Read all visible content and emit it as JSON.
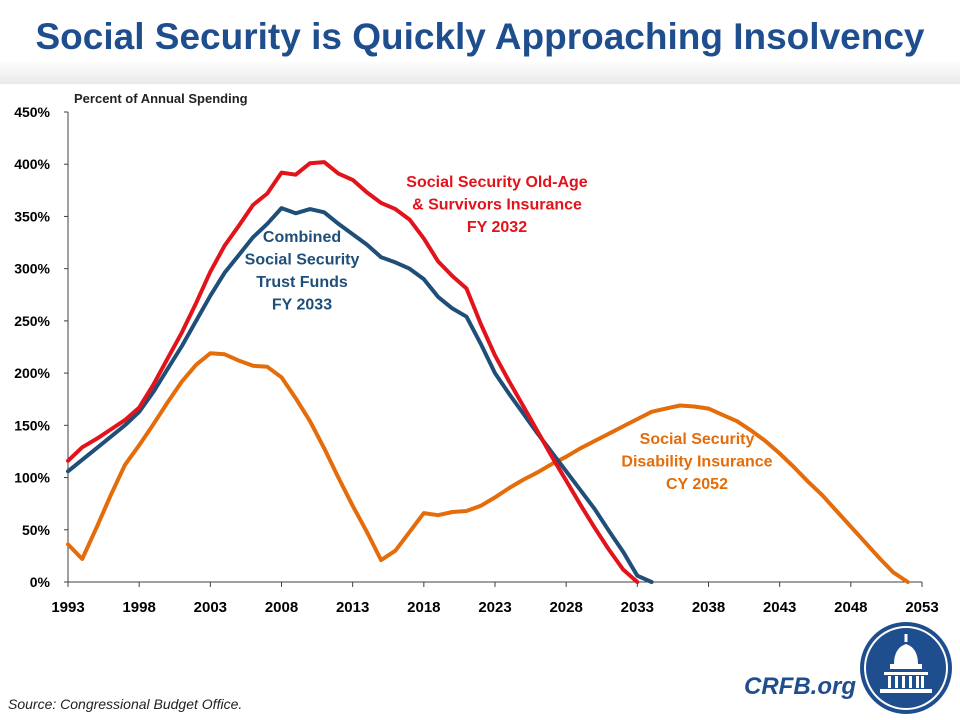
{
  "title": "Social Security is Quickly Approaching Insolvency",
  "source": "Source: Congressional Budget Office.",
  "brand": "CRFB.org",
  "chart_data": {
    "type": "line",
    "ylabel": "Percent of Annual Spending",
    "ylim": [
      0,
      450
    ],
    "yticks": [
      0,
      50,
      100,
      150,
      200,
      250,
      300,
      350,
      400,
      450
    ],
    "ytick_labels": [
      "0%",
      "50%",
      "100%",
      "150%",
      "200%",
      "250%",
      "300%",
      "350%",
      "400%",
      "450%"
    ],
    "xlim": [
      1993,
      2053
    ],
    "xticks": [
      1993,
      1998,
      2003,
      2008,
      2013,
      2018,
      2023,
      2028,
      2033,
      2038,
      2043,
      2048,
      2053
    ],
    "grid": false,
    "series": [
      {
        "name": "Social Security Old-Age & Survivors Insurance FY 2032",
        "label_lines": [
          "Social Security Old-Age",
          "& Survivors Insurance",
          "FY 2032"
        ],
        "color": "#e3131b",
        "points": [
          [
            1993,
            116
          ],
          [
            1994,
            129
          ],
          [
            1995,
            137
          ],
          [
            1996,
            146
          ],
          [
            1997,
            155
          ],
          [
            1998,
            167
          ],
          [
            1999,
            189
          ],
          [
            2000,
            214
          ],
          [
            2001,
            239
          ],
          [
            2002,
            267
          ],
          [
            2003,
            297
          ],
          [
            2004,
            322
          ],
          [
            2005,
            341
          ],
          [
            2006,
            361
          ],
          [
            2007,
            372
          ],
          [
            2008,
            392
          ],
          [
            2009,
            390
          ],
          [
            2010,
            401
          ],
          [
            2011,
            402
          ],
          [
            2012,
            391
          ],
          [
            2013,
            385
          ],
          [
            2014,
            373
          ],
          [
            2015,
            363
          ],
          [
            2016,
            357
          ],
          [
            2017,
            347
          ],
          [
            2018,
            329
          ],
          [
            2019,
            307
          ],
          [
            2020,
            293
          ],
          [
            2021,
            281
          ],
          [
            2022,
            247
          ],
          [
            2023,
            217
          ],
          [
            2024,
            192
          ],
          [
            2025,
            168
          ],
          [
            2026,
            144
          ],
          [
            2027,
            120
          ],
          [
            2028,
            97
          ],
          [
            2029,
            74
          ],
          [
            2030,
            52
          ],
          [
            2031,
            31
          ],
          [
            2032,
            12
          ],
          [
            2033,
            0
          ]
        ]
      },
      {
        "name": "Combined Social Security Trust Funds FY 2033",
        "label_lines": [
          "Combined",
          "Social Security",
          "Trust Funds",
          "FY 2033"
        ],
        "color": "#1f4e79",
        "points": [
          [
            1993,
            106
          ],
          [
            1994,
            117
          ],
          [
            1995,
            128
          ],
          [
            1996,
            139
          ],
          [
            1997,
            150
          ],
          [
            1998,
            163
          ],
          [
            1999,
            182
          ],
          [
            2000,
            204
          ],
          [
            2001,
            226
          ],
          [
            2002,
            250
          ],
          [
            2003,
            274
          ],
          [
            2004,
            296
          ],
          [
            2005,
            313
          ],
          [
            2006,
            330
          ],
          [
            2007,
            343
          ],
          [
            2008,
            358
          ],
          [
            2009,
            353
          ],
          [
            2010,
            357
          ],
          [
            2011,
            354
          ],
          [
            2012,
            343
          ],
          [
            2013,
            333
          ],
          [
            2014,
            323
          ],
          [
            2015,
            311
          ],
          [
            2016,
            306
          ],
          [
            2017,
            300
          ],
          [
            2018,
            290
          ],
          [
            2019,
            273
          ],
          [
            2020,
            262
          ],
          [
            2021,
            254
          ],
          [
            2022,
            228
          ],
          [
            2023,
            200
          ],
          [
            2024,
            180
          ],
          [
            2025,
            161
          ],
          [
            2026,
            142
          ],
          [
            2027,
            124
          ],
          [
            2028,
            106
          ],
          [
            2029,
            88
          ],
          [
            2030,
            70
          ],
          [
            2031,
            49
          ],
          [
            2032,
            29
          ],
          [
            2033,
            6
          ],
          [
            2034,
            0
          ]
        ]
      },
      {
        "name": "Social Security Disability Insurance CY 2052",
        "label_lines": [
          "Social Security",
          "Disability Insurance",
          "CY 2052"
        ],
        "color": "#e46c0a",
        "points": [
          [
            1993,
            36
          ],
          [
            1994,
            22
          ],
          [
            1995,
            52
          ],
          [
            1996,
            83
          ],
          [
            1997,
            112
          ],
          [
            1998,
            131
          ],
          [
            1999,
            151
          ],
          [
            2000,
            172
          ],
          [
            2001,
            192
          ],
          [
            2002,
            208
          ],
          [
            2003,
            219
          ],
          [
            2004,
            218
          ],
          [
            2005,
            212
          ],
          [
            2006,
            207
          ],
          [
            2007,
            206
          ],
          [
            2008,
            196
          ],
          [
            2009,
            176
          ],
          [
            2010,
            154
          ],
          [
            2011,
            128
          ],
          [
            2012,
            100
          ],
          [
            2013,
            73
          ],
          [
            2014,
            48
          ],
          [
            2015,
            21
          ],
          [
            2016,
            30
          ],
          [
            2017,
            48
          ],
          [
            2018,
            66
          ],
          [
            2019,
            64
          ],
          [
            2020,
            67
          ],
          [
            2021,
            68
          ],
          [
            2022,
            73
          ],
          [
            2023,
            81
          ],
          [
            2024,
            90
          ],
          [
            2025,
            98
          ],
          [
            2026,
            105
          ],
          [
            2027,
            113
          ],
          [
            2028,
            120
          ],
          [
            2029,
            128
          ],
          [
            2030,
            135
          ],
          [
            2031,
            142
          ],
          [
            2032,
            149
          ],
          [
            2033,
            156
          ],
          [
            2034,
            163
          ],
          [
            2035,
            166
          ],
          [
            2036,
            169
          ],
          [
            2037,
            168
          ],
          [
            2038,
            166
          ],
          [
            2039,
            160
          ],
          [
            2040,
            154
          ],
          [
            2041,
            145
          ],
          [
            2042,
            135
          ],
          [
            2043,
            123
          ],
          [
            2044,
            110
          ],
          [
            2045,
            96
          ],
          [
            2046,
            83
          ],
          [
            2047,
            68
          ],
          [
            2048,
            53
          ],
          [
            2049,
            38
          ],
          [
            2050,
            23
          ],
          [
            2051,
            9
          ],
          [
            2052,
            0
          ]
        ]
      }
    ]
  }
}
